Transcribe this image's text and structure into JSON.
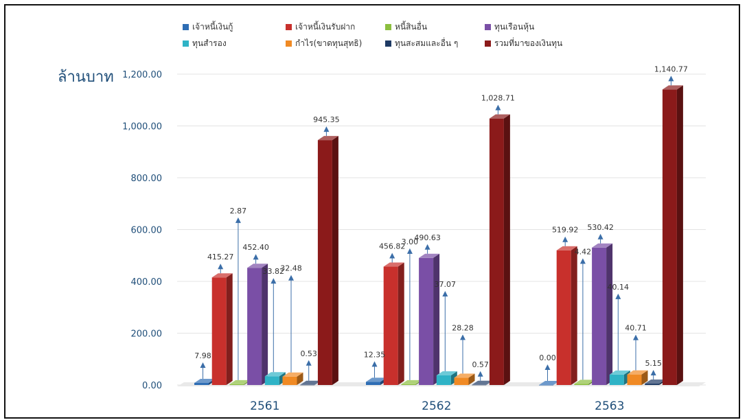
{
  "chart_data": {
    "type": "bar",
    "title": "",
    "ylabel": "ล้านบาท",
    "xlabel": "",
    "ylim": [
      0,
      1200
    ],
    "y_ticks": [
      "0.00",
      "200.00",
      "400.00",
      "600.00",
      "800.00",
      "1,000.00",
      "1,200.00"
    ],
    "y_tick_values": [
      0,
      200,
      400,
      600,
      800,
      1000,
      1200
    ],
    "categories": [
      "2561",
      "2562",
      "2563"
    ],
    "grid": true,
    "legend_position": "top",
    "series": [
      {
        "name": "เจ้าหนี้เงินกู้",
        "color": "#2e6db4",
        "values": [
          7.98,
          12.35,
          0.0
        ],
        "labels": [
          "7.98",
          "12.35",
          "0.00"
        ]
      },
      {
        "name": "เจ้าหนี้เงินรับฝาก",
        "color": "#c8302c",
        "values": [
          415.27,
          456.82,
          519.92
        ],
        "labels": [
          "415.27",
          "456.82",
          "519.92"
        ]
      },
      {
        "name": "หนี้สินอื่น",
        "color": "#8cbf3f",
        "values": [
          2.87,
          3.0,
          4.42
        ],
        "labels": [
          "2.87",
          "3.00",
          "4.42"
        ]
      },
      {
        "name": "ทุนเรือนหุ้น",
        "color": "#7a4fa6",
        "values": [
          452.4,
          490.63,
          530.42
        ],
        "labels": [
          "452.40",
          "490.63",
          "530.42"
        ]
      },
      {
        "name": "ทุนสำรอง",
        "color": "#2fb3c6",
        "values": [
          33.82,
          37.07,
          40.14
        ],
        "labels": [
          "33.82",
          "37.07",
          "40.14"
        ]
      },
      {
        "name": "กำไร(ขาดทุนสุทธิ)",
        "color": "#f08a24",
        "values": [
          32.48,
          28.28,
          40.71
        ],
        "labels": [
          "32.48",
          "28.28",
          "40.71"
        ]
      },
      {
        "name": "ทุนสะสมและอื่น ๆ",
        "color": "#1e3a64",
        "values": [
          0.53,
          0.57,
          5.15
        ],
        "labels": [
          "0.53",
          "0.57",
          "5.15"
        ]
      },
      {
        "name": "รวมที่มาของเงินทุน",
        "color": "#8b1a1a",
        "values": [
          945.35,
          1028.71,
          1140.77
        ],
        "labels": [
          "945.35",
          "1,028.71",
          "1,140.77"
        ]
      }
    ]
  }
}
